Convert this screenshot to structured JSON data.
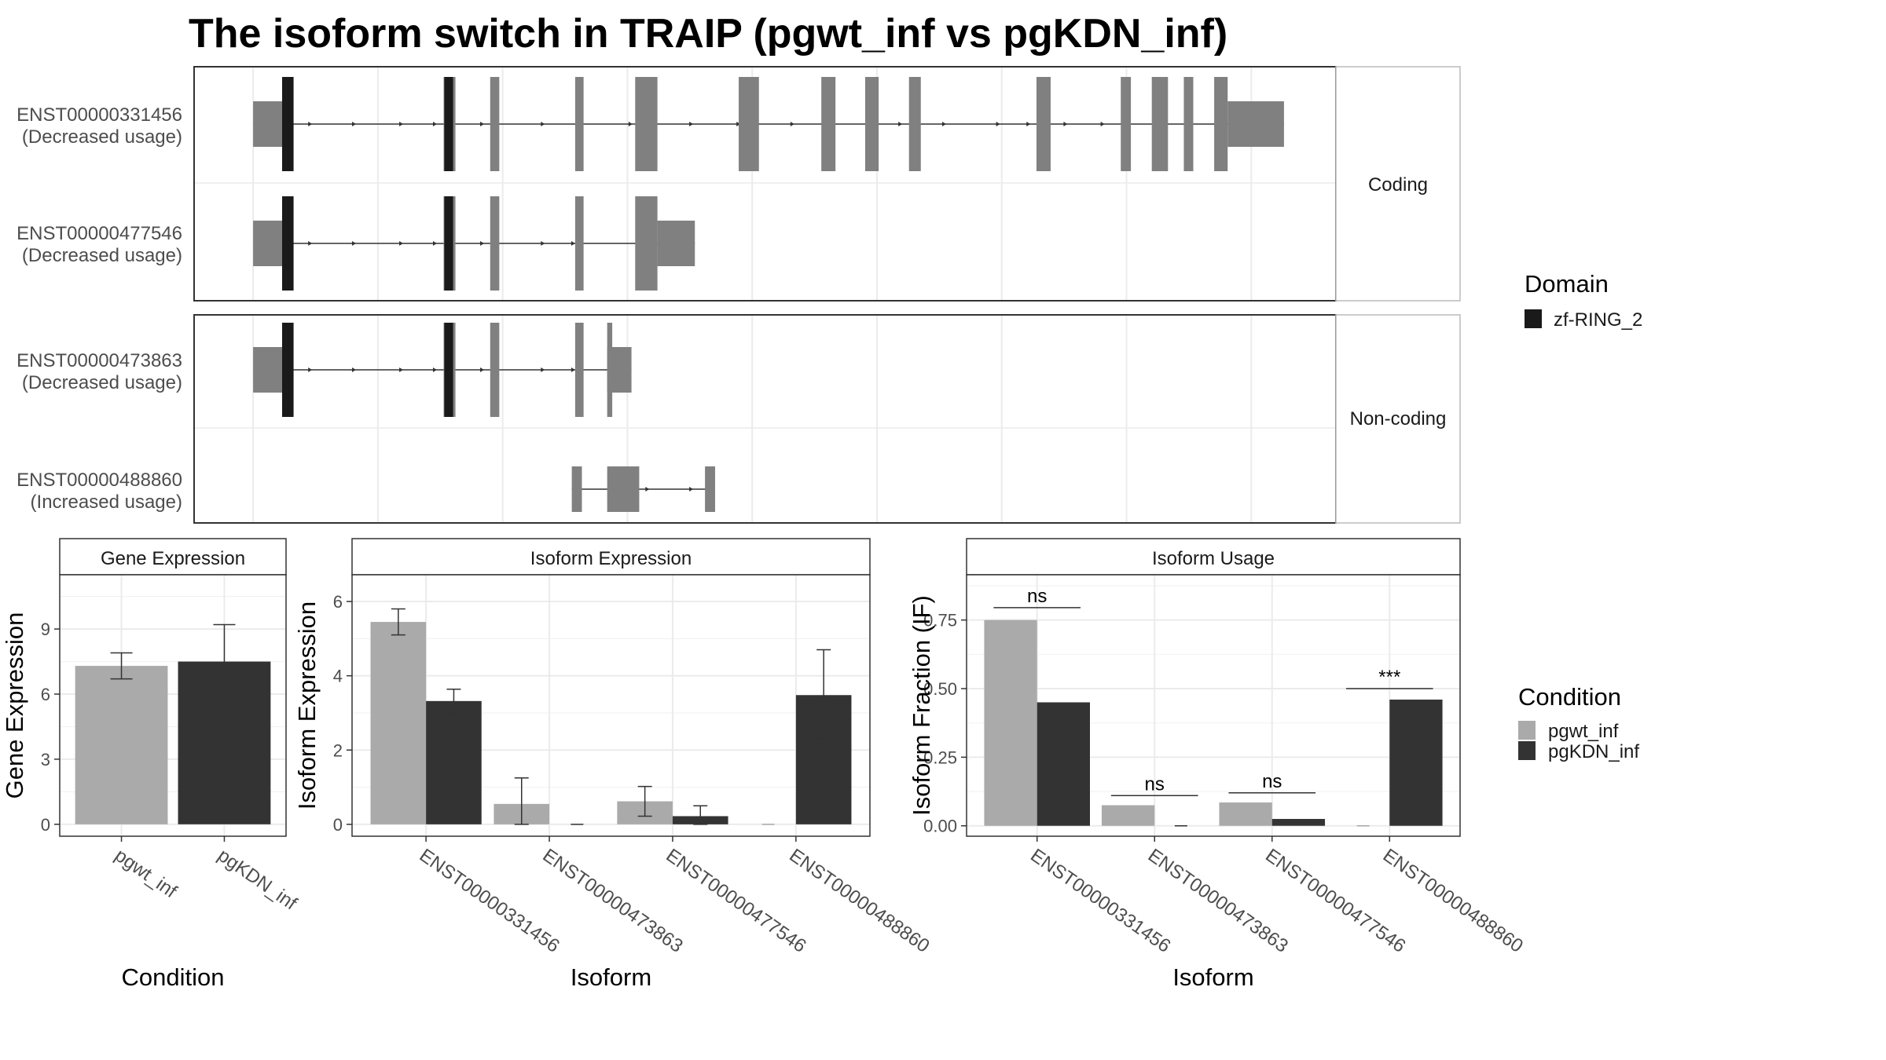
{
  "title": "The isoform switch in TRAIP (pgwt_inf vs pgKDN_inf)",
  "colors": {
    "pgwt_inf": "#aaaaaa",
    "pgKDN_inf": "#333333",
    "exon": "#808080",
    "domain": "#1a1a1a",
    "grid": "#ebebeb",
    "strip_bg": "#ffffff"
  },
  "structure": {
    "facets": [
      "Coding",
      "Non-coding"
    ],
    "isoforms": [
      {
        "id": "ENST00000331456",
        "usage": "(Decreased usage)",
        "facet": "Coding",
        "utr": [
          [
            175,
            261
          ],
          [
            3065,
            3232
          ]
        ],
        "cds": [
          [
            261,
            294
          ],
          [
            740,
            775
          ],
          [
            878,
            905
          ],
          [
            1130,
            1155
          ],
          [
            1308,
            1374
          ],
          [
            1615,
            1675
          ],
          [
            1860,
            1902
          ],
          [
            1990,
            2030
          ],
          [
            2120,
            2155
          ],
          [
            2498,
            2540
          ],
          [
            2748,
            2778
          ],
          [
            2840,
            2888
          ],
          [
            2935,
            2963
          ],
          [
            3025,
            3065
          ]
        ],
        "domains": [
          [
            261,
            295
          ],
          [
            742,
            768
          ]
        ],
        "arrows": [
          350,
          480,
          620,
          720,
          860,
          1040,
          1300,
          1480,
          1620,
          1780,
          2100,
          2230,
          2390,
          2480,
          2590,
          2700
        ]
      },
      {
        "id": "ENST00000477546",
        "usage": "(Decreased usage)",
        "facet": "Coding",
        "utr": [
          [
            175,
            261
          ],
          [
            1374,
            1485
          ]
        ],
        "cds": [
          [
            261,
            294
          ],
          [
            740,
            775
          ],
          [
            878,
            905
          ],
          [
            1130,
            1155
          ],
          [
            1308,
            1374
          ]
        ],
        "domains": [
          [
            261,
            295
          ],
          [
            742,
            768
          ]
        ],
        "arrows": [
          350,
          480,
          620,
          720,
          860,
          1040,
          1130
        ]
      },
      {
        "id": "ENST00000473863",
        "usage": "(Decreased usage)",
        "facet": "Non-coding",
        "utr": [
          [
            175,
            261
          ],
          [
            1225,
            1297
          ]
        ],
        "cds": [
          [
            261,
            294
          ],
          [
            740,
            775
          ],
          [
            878,
            905
          ],
          [
            1130,
            1155
          ],
          [
            1225,
            1240
          ]
        ],
        "domains": [
          [
            261,
            295
          ],
          [
            742,
            768
          ]
        ],
        "arrows": [
          350,
          480,
          620,
          720,
          860,
          1040,
          1130
        ]
      },
      {
        "id": "ENST00000488860",
        "usage": "(Increased usage)",
        "facet": "Non-coding",
        "utr": [
          [
            1120,
            1150
          ],
          [
            1225,
            1320
          ],
          [
            1515,
            1545
          ]
        ],
        "cds": [],
        "domains": [],
        "arrows": [
          1350,
          1480
        ]
      }
    ]
  },
  "legends": {
    "domain": {
      "title": "Domain",
      "items": [
        {
          "label": "zf-RING_2",
          "color": "#1a1a1a"
        }
      ]
    },
    "condition": {
      "title": "Condition",
      "items": [
        {
          "label": "pgwt_inf",
          "color": "#aaaaaa"
        },
        {
          "label": "pgKDN_inf",
          "color": "#333333"
        }
      ]
    }
  },
  "chart_data": [
    {
      "type": "bar",
      "title": "Gene Expression",
      "xlabel": "Condition",
      "ylabel": "Gene Expression",
      "categories": [
        "pgwt_inf",
        "pgKDN_inf"
      ],
      "values": [
        7.3,
        7.5
      ],
      "errors": [
        [
          6.7,
          7.9
        ],
        [
          5.8,
          9.2
        ]
      ],
      "ylim": [
        -0.55,
        11.5
      ],
      "yticks": [
        0,
        3,
        6,
        9
      ],
      "ytick_labels": [
        "0",
        "3",
        "6",
        "9"
      ]
    },
    {
      "type": "bar",
      "title": "Isoform Expression",
      "xlabel": "Isoform",
      "ylabel": "Isoform Expression",
      "categories": [
        "ENST00000331456",
        "ENST00000473863",
        "ENST00000477546",
        "ENST00000488860"
      ],
      "series": [
        {
          "name": "pgwt_inf",
          "values": [
            5.45,
            0.55,
            0.62,
            0.0
          ],
          "errors": [
            [
              5.1,
              5.8
            ],
            [
              0.0,
              1.25
            ],
            [
              0.22,
              1.02
            ],
            [
              0.0,
              0.0
            ]
          ]
        },
        {
          "name": "pgKDN_inf",
          "values": [
            3.32,
            0.0,
            0.22,
            3.48
          ],
          "errors": [
            [
              3.0,
              3.64
            ],
            [
              0.0,
              0.0
            ],
            [
              0.0,
              0.5
            ],
            [
              2.3,
              4.7
            ]
          ]
        }
      ],
      "ylim": [
        -0.32,
        6.72
      ],
      "yticks": [
        0,
        2,
        4,
        6
      ],
      "ytick_labels": [
        "0",
        "2",
        "4",
        "6"
      ]
    },
    {
      "type": "bar",
      "title": "Isoform Usage",
      "xlabel": "Isoform",
      "ylabel": "Isoform Fraction (IF)",
      "categories": [
        "ENST00000331456",
        "ENST00000473863",
        "ENST00000477546",
        "ENST00000488860"
      ],
      "series": [
        {
          "name": "pgwt_inf",
          "values": [
            0.75,
            0.075,
            0.085,
            0.0
          ]
        },
        {
          "name": "pgKDN_inf",
          "values": [
            0.45,
            0.0,
            0.025,
            0.46
          ]
        }
      ],
      "significance": [
        {
          "label": "ns",
          "y": 0.795
        },
        {
          "label": "ns",
          "y": 0.11
        },
        {
          "label": "ns",
          "y": 0.12
        },
        {
          "label": "***",
          "y": 0.5
        }
      ],
      "ylim": [
        -0.038,
        0.915
      ],
      "yticks": [
        0,
        0.25,
        0.5,
        0.75
      ],
      "ytick_labels": [
        "0.00",
        "0.25",
        "0.50",
        "0.75"
      ]
    }
  ]
}
